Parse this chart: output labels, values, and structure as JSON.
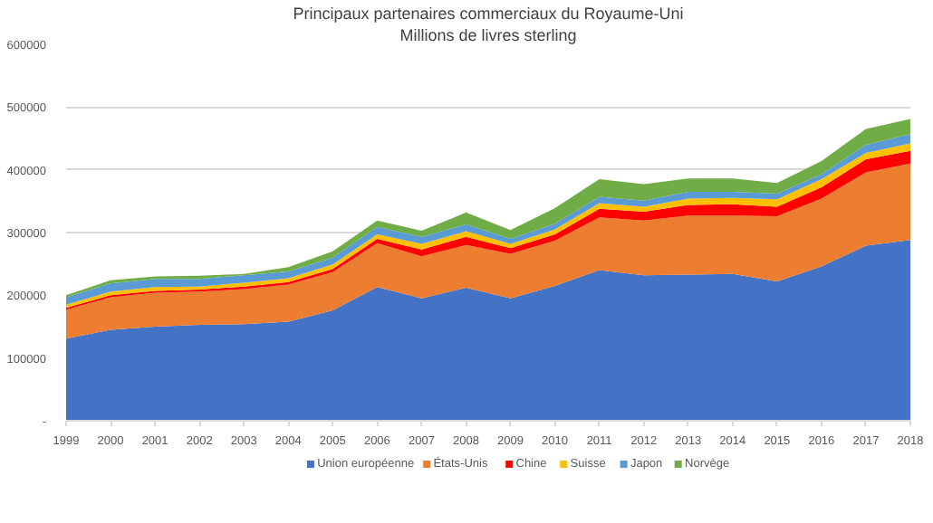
{
  "chart_data": {
    "type": "area",
    "stacked": true,
    "title": "Principaux partenaires commerciaux du Royaume-Uni",
    "subtitle": "Millions de livres sterling",
    "x": [
      1999,
      2000,
      2001,
      2002,
      2003,
      2004,
      2005,
      2006,
      2007,
      2008,
      2009,
      2010,
      2011,
      2012,
      2013,
      2014,
      2015,
      2016,
      2017,
      2018
    ],
    "series": [
      {
        "name": "Union européenne",
        "color": "#4472c4",
        "values": [
          131000,
          145000,
          150000,
          153000,
          154000,
          158000,
          176000,
          213000,
          195000,
          212000,
          195000,
          215000,
          240000,
          232000,
          233000,
          234000,
          222000,
          246000,
          279000,
          288000
        ]
      },
      {
        "name": "États-Unis",
        "color": "#ed7d31",
        "values": [
          46000,
          52000,
          54000,
          53000,
          56000,
          59000,
          61000,
          70000,
          67000,
          68000,
          71000,
          72000,
          84000,
          87000,
          94000,
          93000,
          104000,
          108000,
          117000,
          122000
        ]
      },
      {
        "name": "Chine",
        "color": "#ff0000",
        "values": [
          3000,
          3000,
          3000,
          3000,
          4000,
          4000,
          5000,
          7000,
          11000,
          13000,
          9000,
          10000,
          14000,
          14000,
          17000,
          18000,
          15000,
          18000,
          21000,
          20000
        ]
      },
      {
        "name": "Suisse",
        "color": "#ffc000",
        "values": [
          5000,
          6000,
          6000,
          5000,
          6000,
          6000,
          7000,
          7000,
          9000,
          9000,
          7000,
          8000,
          9000,
          8000,
          10000,
          10000,
          12000,
          13000,
          10000,
          12000
        ]
      },
      {
        "name": "Japon",
        "color": "#5b9bd5",
        "values": [
          12000,
          13000,
          13000,
          12000,
          12000,
          11000,
          11000,
          12000,
          11000,
          11000,
          8000,
          9000,
          10000,
          10000,
          11000,
          10000,
          9000,
          8000,
          13000,
          15000
        ]
      },
      {
        "name": "Norvège",
        "color": "#70ad47",
        "values": [
          3000,
          5000,
          4000,
          5000,
          2000,
          7000,
          10000,
          10000,
          10000,
          19000,
          14000,
          25000,
          28000,
          26000,
          21000,
          21000,
          17000,
          21000,
          25000,
          24000
        ]
      }
    ],
    "xlim": [
      1999,
      2018
    ],
    "xticks": [
      1999,
      2000,
      2001,
      2002,
      2003,
      2004,
      2005,
      2006,
      2007,
      2008,
      2009,
      2010,
      2011,
      2012,
      2013,
      2014,
      2015,
      2016,
      2017,
      2018
    ],
    "ylim": [
      0,
      600000
    ],
    "yticks": [
      {
        "value": 0,
        "label": "-"
      },
      100000,
      200000,
      300000,
      400000,
      500000,
      600000
    ],
    "grid": "y",
    "legend": "bottom"
  }
}
